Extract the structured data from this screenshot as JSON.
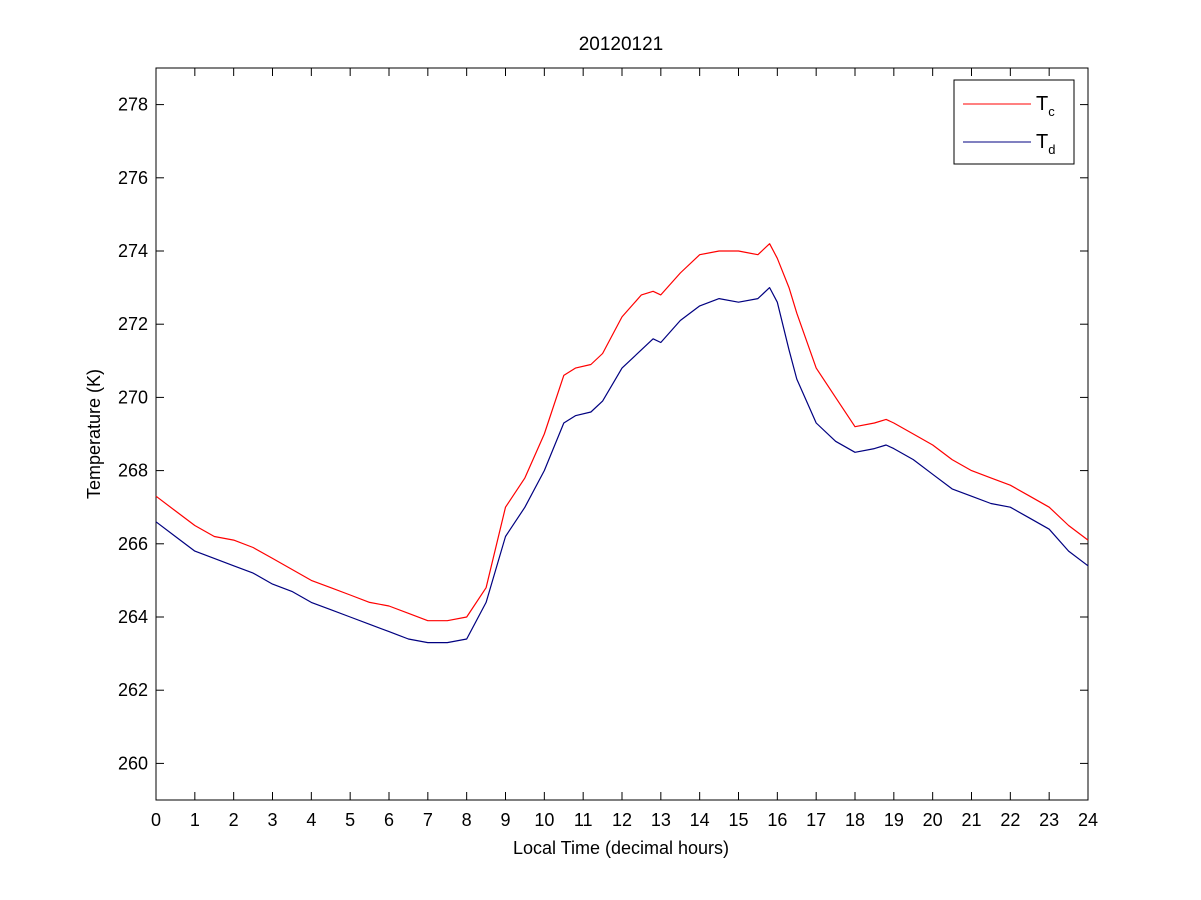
{
  "chart_data": {
    "type": "line",
    "title": "20120121",
    "xlabel": "Local Time (decimal hours)",
    "ylabel": "Temperature (K)",
    "xlim": [
      0,
      24
    ],
    "ylim": [
      259,
      279
    ],
    "xticks": [
      0,
      1,
      2,
      3,
      4,
      5,
      6,
      7,
      8,
      9,
      10,
      11,
      12,
      13,
      14,
      15,
      16,
      17,
      18,
      19,
      20,
      21,
      22,
      23,
      24
    ],
    "yticks": [
      260,
      262,
      264,
      266,
      268,
      270,
      272,
      274,
      276,
      278
    ],
    "grid": false,
    "legend_position": "top-right",
    "series": [
      {
        "name": "T",
        "name_subscript": "c",
        "color": "#ff0000",
        "x": [
          0,
          0.5,
          1,
          1.5,
          2,
          2.5,
          3,
          3.5,
          4,
          4.5,
          5,
          5.5,
          6,
          6.5,
          7,
          7.5,
          8,
          8.5,
          9,
          9.5,
          10,
          10.5,
          10.8,
          11.2,
          11.5,
          12,
          12.5,
          12.8,
          13,
          13.5,
          14,
          14.5,
          15,
          15.5,
          15.8,
          16,
          16.3,
          16.5,
          17,
          17.5,
          18,
          18.5,
          18.8,
          19,
          19.5,
          20,
          20.5,
          21,
          21.5,
          22,
          22.5,
          23,
          23.5,
          24
        ],
        "y": [
          267.3,
          266.9,
          266.5,
          266.2,
          266.1,
          265.9,
          265.6,
          265.3,
          265.0,
          264.8,
          264.6,
          264.4,
          264.3,
          264.1,
          263.9,
          263.9,
          264.0,
          264.8,
          267.0,
          267.8,
          269.0,
          270.6,
          270.8,
          270.9,
          271.2,
          272.2,
          272.8,
          272.9,
          272.8,
          273.4,
          273.9,
          274.0,
          274.0,
          273.9,
          274.2,
          273.8,
          273.0,
          272.3,
          270.8,
          270.0,
          269.2,
          269.3,
          269.4,
          269.3,
          269.0,
          268.7,
          268.3,
          268.0,
          267.8,
          267.6,
          267.3,
          267.0,
          266.5,
          266.1
        ]
      },
      {
        "name": "T",
        "name_subscript": "d",
        "color": "#000080",
        "x": [
          0,
          0.5,
          1,
          1.5,
          2,
          2.5,
          3,
          3.5,
          4,
          4.5,
          5,
          5.5,
          6,
          6.5,
          7,
          7.5,
          8,
          8.5,
          9,
          9.5,
          10,
          10.5,
          10.8,
          11.2,
          11.5,
          12,
          12.5,
          12.8,
          13,
          13.5,
          14,
          14.5,
          15,
          15.5,
          15.8,
          16,
          16.3,
          16.5,
          17,
          17.5,
          18,
          18.5,
          18.8,
          19,
          19.5,
          20,
          20.5,
          21,
          21.5,
          22,
          22.5,
          23,
          23.5,
          24
        ],
        "y": [
          266.6,
          266.2,
          265.8,
          265.6,
          265.4,
          265.2,
          264.9,
          264.7,
          264.4,
          264.2,
          264.0,
          263.8,
          263.6,
          263.4,
          263.3,
          263.3,
          263.4,
          264.4,
          266.2,
          267.0,
          268.0,
          269.3,
          269.5,
          269.6,
          269.9,
          270.8,
          271.3,
          271.6,
          271.5,
          272.1,
          272.5,
          272.7,
          272.6,
          272.7,
          273.0,
          272.6,
          271.3,
          270.5,
          269.3,
          268.8,
          268.5,
          268.6,
          268.7,
          268.6,
          268.3,
          267.9,
          267.5,
          267.3,
          267.1,
          267.0,
          266.7,
          266.4,
          265.8,
          265.4
        ]
      }
    ]
  }
}
